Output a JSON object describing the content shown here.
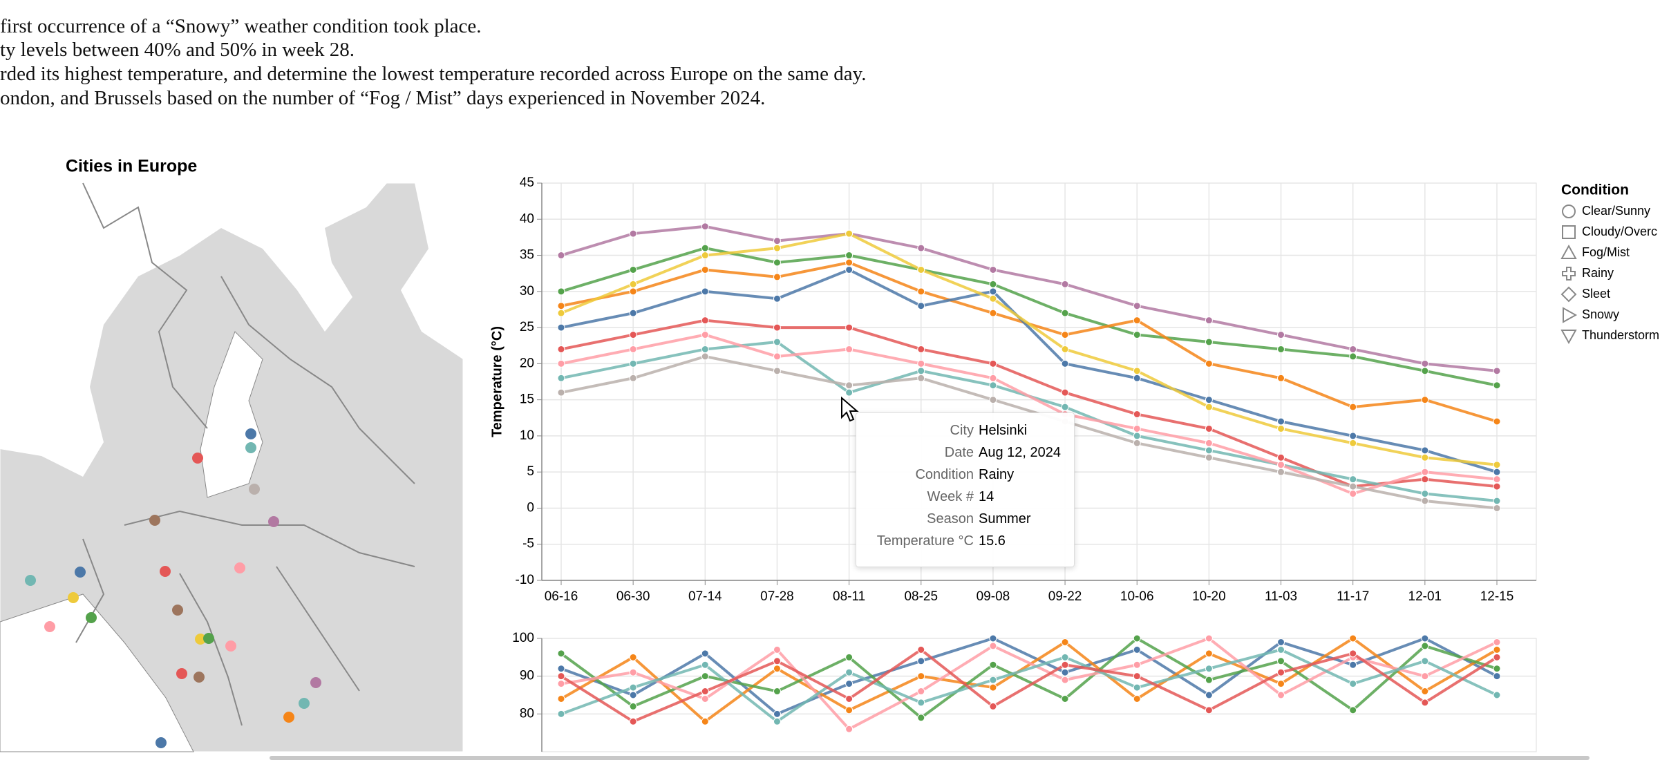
{
  "instructions": [
    "first occurrence of a “Snowy” weather condition took place.",
    "ty levels between 40% and 50% in week 28.",
    "rded its highest temperature, and determine the lowest temperature recorded across Europe on the same day.",
    "ondon, and Brussels based on the number of “Fog / Mist” days experienced in November 2024."
  ],
  "map": {
    "title": "Cities in Europe"
  },
  "legend": {
    "title": "Condition",
    "items": [
      "Clear/Sunny",
      "Cloudy/Overc",
      "Fog/Mist",
      "Rainy",
      "Sleet",
      "Snowy",
      "Thunderstorm"
    ]
  },
  "tooltip": {
    "rows": [
      [
        "City",
        "Helsinki"
      ],
      [
        "Date",
        "Aug 12, 2024"
      ],
      [
        "Condition",
        "Rainy"
      ],
      [
        "Week #",
        14
      ],
      [
        "Season",
        "Summer"
      ],
      [
        "Temperature °C",
        15.6
      ]
    ]
  },
  "chart_data": [
    {
      "type": "line",
      "y_label": "Temperature (°C)",
      "x": [
        "06-16",
        "06-30",
        "07-14",
        "07-28",
        "08-11",
        "08-25",
        "09-08",
        "09-22",
        "10-06",
        "10-20",
        "11-03",
        "11-17",
        "12-01",
        "12-15"
      ],
      "ylim": [
        -10,
        45
      ],
      "yticks": [
        -10,
        -5,
        0,
        5,
        10,
        15,
        20,
        25,
        30,
        35,
        40,
        45
      ],
      "grid": true,
      "series": [
        {
          "color": "#b279a2",
          "values": [
            35,
            38,
            39,
            37,
            38,
            36,
            33,
            31,
            28,
            26,
            24,
            22,
            20,
            19
          ]
        },
        {
          "color": "#54a24b",
          "values": [
            30,
            33,
            36,
            34,
            35,
            33,
            31,
            27,
            24,
            23,
            22,
            21,
            19,
            17
          ]
        },
        {
          "color": "#f58518",
          "values": [
            28,
            30,
            33,
            32,
            34,
            30,
            27,
            24,
            26,
            20,
            18,
            14,
            15,
            12
          ]
        },
        {
          "color": "#4c78a8",
          "values": [
            25,
            27,
            30,
            29,
            33,
            28,
            30,
            20,
            18,
            15,
            12,
            10,
            8,
            5
          ]
        },
        {
          "color": "#e45756",
          "values": [
            22,
            24,
            26,
            25,
            25,
            22,
            20,
            16,
            13,
            11,
            7,
            3,
            4,
            3
          ]
        },
        {
          "color": "#72b7b2",
          "values": [
            18,
            20,
            22,
            23,
            16,
            19,
            17,
            14,
            10,
            8,
            6,
            4,
            2,
            1
          ]
        },
        {
          "color": "#ff9da6",
          "values": [
            20,
            22,
            24,
            21,
            22,
            20,
            18,
            13,
            11,
            9,
            6,
            2,
            5,
            4
          ]
        },
        {
          "color": "#bab0ac",
          "values": [
            16,
            18,
            21,
            19,
            17,
            18,
            15,
            12,
            9,
            7,
            5,
            3,
            1,
            0
          ]
        },
        {
          "color": "#eeca3b",
          "values": [
            27,
            31,
            35,
            36,
            38,
            33,
            29,
            22,
            19,
            14,
            11,
            9,
            7,
            6
          ]
        }
      ]
    },
    {
      "type": "line",
      "ylim": [
        70,
        100
      ],
      "yticks": [
        80,
        90,
        100
      ],
      "grid": true,
      "series": [
        {
          "color": "#4c78a8",
          "values": [
            92,
            85,
            96,
            80,
            88,
            94,
            100,
            91,
            97,
            85,
            99,
            93,
            100,
            90
          ]
        },
        {
          "color": "#f58518",
          "values": [
            84,
            95,
            78,
            92,
            81,
            90,
            87,
            99,
            84,
            96,
            88,
            100,
            86,
            97
          ]
        },
        {
          "color": "#54a24b",
          "values": [
            96,
            82,
            90,
            86,
            95,
            79,
            93,
            84,
            100,
            89,
            94,
            81,
            98,
            92
          ]
        },
        {
          "color": "#ff9da6",
          "values": [
            88,
            91,
            84,
            97,
            76,
            86,
            98,
            89,
            93,
            100,
            85,
            95,
            90,
            99
          ]
        },
        {
          "color": "#72b7b2",
          "values": [
            80,
            87,
            93,
            78,
            91,
            83,
            89,
            95,
            87,
            92,
            97,
            88,
            94,
            85
          ]
        },
        {
          "color": "#e45756",
          "values": [
            90,
            78,
            86,
            94,
            84,
            97,
            82,
            93,
            90,
            81,
            91,
            96,
            83,
            95
          ]
        }
      ]
    }
  ]
}
